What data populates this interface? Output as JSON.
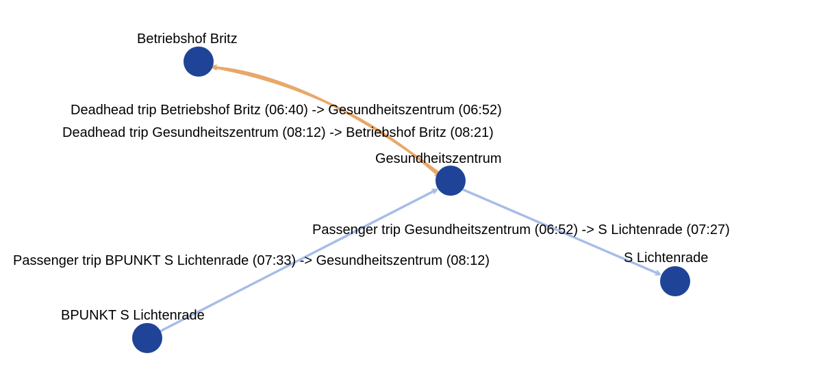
{
  "colors": {
    "node": "#1f4497",
    "deadhead_edge": "#e8a86a",
    "passenger_edge": "#a7bde8",
    "text": "#000000"
  },
  "nodes": {
    "britz": {
      "label": "Betriebshof Britz"
    },
    "gesundheitszentrum": {
      "label": "Gesundheitszentrum"
    },
    "lichtenrade": {
      "label": "S Lichtenrade"
    },
    "bpunkt": {
      "label": "BPUNKT S Lichtenrade"
    }
  },
  "edges": {
    "deadhead_out": {
      "label": "Deadhead trip Betriebshof Britz (06:40) -> Gesundheitszentrum (06:52)",
      "type": "deadhead"
    },
    "deadhead_back": {
      "label": "Deadhead trip Gesundheitszentrum (08:12) -> Betriebshof Britz (08:21)",
      "type": "deadhead"
    },
    "passenger_out": {
      "label": "Passenger trip Gesundheitszentrum (06:52) -> S Lichtenrade (07:27)",
      "type": "passenger"
    },
    "passenger_back": {
      "label": "Passenger trip BPUNKT S Lichtenrade (07:33) -> Gesundheitszentrum (08:12)",
      "type": "passenger"
    }
  }
}
